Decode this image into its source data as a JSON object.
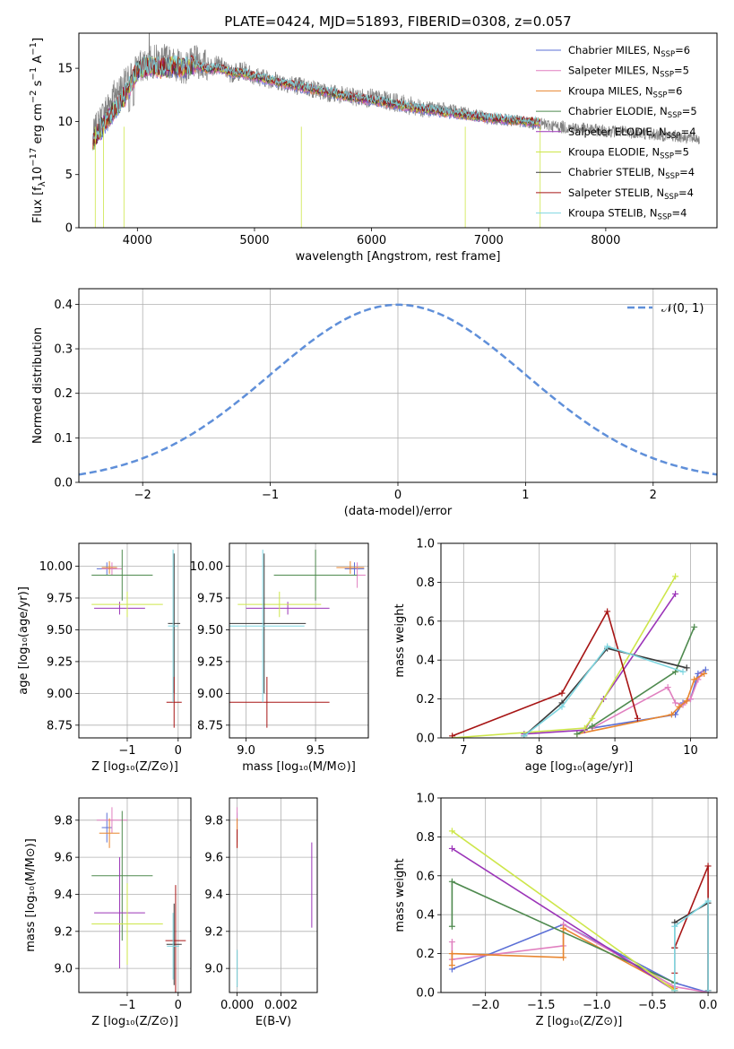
{
  "figure": {
    "title": "PLATE=0424, MJD=51893, FIBERID=0308, z=0.057"
  },
  "colors": {
    "Chabrier MILES": "#5b6fd6",
    "Salpeter MILES": "#e07fbf",
    "Kroupa MILES": "#e8852e",
    "Chabrier ELODIE": "#4f8a4f",
    "Salpeter ELODIE": "#9b34b8",
    "Kroupa ELODIE": "#cde64a",
    "Chabrier STELIB": "#3a3a3a",
    "Salpeter STELIB": "#a71515",
    "Kroupa STELIB": "#7fd6e0",
    "data": "#808080",
    "normal": "#5f8fd9"
  },
  "chart_data": [
    {
      "id": "spectrum",
      "type": "line",
      "title": "PLATE=0424, MJD=51893, FIBERID=0308, z=0.057",
      "xlabel": "wavelength [Angstrom, rest frame]",
      "ylabel": "Flux [f_λ 10^-17 erg cm^-2 s^-1 A^-1]",
      "xlim": [
        3500,
        8950
      ],
      "ylim": [
        0,
        18.3
      ],
      "xticks": [
        4000,
        5000,
        6000,
        7000,
        8000
      ],
      "yticks": [
        0,
        5,
        10,
        15
      ],
      "grid": false,
      "legend_position": "top-right",
      "legend": [
        {
          "label": "Chabrier MILES, N_SSP=6",
          "model": "Chabrier MILES"
        },
        {
          "label": "Salpeter MILES, N_SSP=5",
          "model": "Salpeter MILES"
        },
        {
          "label": "Kroupa MILES, N_SSP=6",
          "model": "Kroupa MILES"
        },
        {
          "label": "Chabrier ELODIE, N_SSP=5",
          "model": "Chabrier ELODIE"
        },
        {
          "label": "Salpeter ELODIE, N_SSP=4",
          "model": "Salpeter ELODIE"
        },
        {
          "label": "Kroupa ELODIE, N_SSP=5",
          "model": "Kroupa ELODIE"
        },
        {
          "label": "Chabrier STELIB, N_SSP=4",
          "model": "Chabrier STELIB"
        },
        {
          "label": "Salpeter STELIB, N_SSP=4",
          "model": "Salpeter STELIB"
        },
        {
          "label": "Kroupa STELIB, N_SSP=4",
          "model": "Kroupa STELIB"
        }
      ],
      "series": [
        {
          "name": "data",
          "x": [
            3620,
            3700,
            3800,
            3900,
            4000,
            4100,
            4200,
            4300,
            4400,
            4500,
            4600,
            4700,
            4800,
            4900,
            5000,
            5200,
            5400,
            5600,
            5800,
            6000,
            6200,
            6400,
            6600,
            6800,
            7000,
            7200,
            7400,
            7600,
            7800,
            8000,
            8200,
            8400,
            8600,
            8800
          ],
          "y": [
            8.5,
            10.5,
            12.5,
            13.5,
            15.0,
            15.5,
            15.8,
            15.5,
            15.0,
            15.6,
            15.2,
            15.3,
            14.5,
            14.8,
            14.3,
            13.8,
            13.3,
            12.8,
            12.3,
            12.2,
            11.8,
            11.3,
            11.2,
            10.8,
            10.3,
            10.1,
            9.8,
            9.5,
            9.3,
            9.1,
            9.0,
            8.8,
            8.6,
            8.4
          ]
        },
        {
          "name": "model",
          "x": [
            3620,
            3700,
            3800,
            3900,
            4000,
            4100,
            4200,
            4300,
            4400,
            4500,
            4600,
            4700,
            4800,
            4900,
            5000,
            5200,
            5400,
            5600,
            5800,
            6000,
            6200,
            6400,
            6600,
            6800,
            7000,
            7200,
            7400
          ],
          "y": [
            8.0,
            9.5,
            11.0,
            12.5,
            14.8,
            15.2,
            15.0,
            15.2,
            15.0,
            15.3,
            14.9,
            15.0,
            14.6,
            14.5,
            14.2,
            13.7,
            13.2,
            12.8,
            12.3,
            12.0,
            11.6,
            11.2,
            10.9,
            10.6,
            10.3,
            10.1,
            9.9
          ]
        }
      ]
    },
    {
      "id": "residuals",
      "type": "line",
      "xlabel": "(data-model)/error",
      "ylabel": "Normed distribution",
      "xlim": [
        -2.5,
        2.5
      ],
      "ylim": [
        0,
        0.435
      ],
      "xticks": [
        -2,
        -1,
        0,
        1,
        2
      ],
      "yticks": [
        0.0,
        0.1,
        0.2,
        0.3,
        0.4
      ],
      "grid": true,
      "legend_position": "top-right",
      "legend": [
        {
          "label": "𝒩(0, 1)"
        }
      ],
      "bin_width": 0.1,
      "series": [
        {
          "name": "histogram",
          "x_start": -2.5,
          "values": [
            0.04,
            0.04,
            0.05,
            0.055,
            0.06,
            0.07,
            0.08,
            0.09,
            0.11,
            0.12,
            0.14,
            0.15,
            0.17,
            0.19,
            0.19,
            0.18,
            0.2,
            0.22,
            0.23,
            0.26,
            0.28,
            0.3,
            0.32,
            0.33,
            0.34,
            0.35,
            0.36,
            0.37,
            0.36,
            0.35,
            0.34,
            0.35,
            0.36,
            0.34,
            0.33,
            0.34,
            0.36,
            0.35,
            0.33,
            0.3,
            0.27,
            0.25,
            0.22,
            0.2,
            0.18,
            0.15,
            0.13,
            0.11,
            0.1,
            0.09,
            0.075,
            0.065,
            0.055,
            0.05,
            0.045,
            0.04
          ]
        }
      ]
    },
    {
      "id": "age-vs-Z",
      "type": "scatter",
      "xlabel": "Z [log10(Z/Z_⊙)]",
      "ylabel": "age [log10(age/yr)]",
      "xlim": [
        -1.95,
        0.25
      ],
      "ylim": [
        8.65,
        10.18
      ],
      "xticks": [
        -1,
        0
      ],
      "yticks": [
        8.75,
        9.0,
        9.25,
        9.5,
        9.75,
        10.0
      ],
      "grid": true,
      "points": [
        {
          "model": "Chabrier MILES",
          "x": -1.4,
          "y": 9.98,
          "xerr": 0.2,
          "yerr": 0.05
        },
        {
          "model": "Salpeter MILES",
          "x": -1.3,
          "y": 9.98,
          "xerr": 0.2,
          "yerr": 0.05
        },
        {
          "model": "Kroupa MILES",
          "x": -1.35,
          "y": 9.99,
          "xerr": 0.15,
          "yerr": 0.05
        },
        {
          "model": "Chabrier ELODIE",
          "x": -1.1,
          "y": 9.93,
          "xerr": 0.6,
          "yerr": 0.2
        },
        {
          "model": "Salpeter ELODIE",
          "x": -1.15,
          "y": 9.67,
          "xerr": 0.5,
          "yerr": 0.05
        },
        {
          "model": "Kroupa ELODIE",
          "x": -1.0,
          "y": 9.7,
          "xerr": 0.7,
          "yerr": 0.1
        },
        {
          "model": "Chabrier STELIB",
          "x": -0.08,
          "y": 9.55,
          "xerr": 0.12,
          "yerr": 0.55
        },
        {
          "model": "Salpeter STELIB",
          "x": -0.08,
          "y": 8.93,
          "xerr": 0.15,
          "yerr": 0.2
        },
        {
          "model": "Kroupa STELIB",
          "x": -0.1,
          "y": 9.53,
          "xerr": 0.1,
          "yerr": 0.6
        }
      ]
    },
    {
      "id": "age-vs-mass",
      "type": "scatter",
      "xlabel": "mass [log10(M/M_⊙)]",
      "ylabel": "",
      "xlim": [
        8.88,
        9.88
      ],
      "ylim": [
        8.65,
        10.18
      ],
      "xticks": [
        9.0,
        9.5
      ],
      "yticks": [
        8.75,
        9.0,
        9.25,
        9.5,
        9.75,
        10.0
      ],
      "grid": true,
      "points": [
        {
          "model": "Chabrier MILES",
          "x": 9.78,
          "y": 9.98,
          "xerr": 0.07,
          "yerr": 0.05
        },
        {
          "model": "Salpeter MILES",
          "x": 9.8,
          "y": 9.93,
          "xerr": 0.06,
          "yerr": 0.1
        },
        {
          "model": "Kroupa MILES",
          "x": 9.75,
          "y": 9.99,
          "xerr": 0.1,
          "yerr": 0.05
        },
        {
          "model": "Chabrier ELODIE",
          "x": 9.5,
          "y": 9.93,
          "xerr": 0.3,
          "yerr": 0.2
        },
        {
          "model": "Salpeter ELODIE",
          "x": 9.3,
          "y": 9.67,
          "xerr": 0.3,
          "yerr": 0.05
        },
        {
          "model": "Kroupa ELODIE",
          "x": 9.24,
          "y": 9.7,
          "xerr": 0.3,
          "yerr": 0.1
        },
        {
          "model": "Chabrier STELIB",
          "x": 9.13,
          "y": 9.55,
          "xerr": 0.3,
          "yerr": 0.55
        },
        {
          "model": "Salpeter STELIB",
          "x": 9.15,
          "y": 8.93,
          "xerr": 0.45,
          "yerr": 0.2
        },
        {
          "model": "Kroupa STELIB",
          "x": 9.12,
          "y": 9.53,
          "xerr": 0.3,
          "yerr": 0.6
        }
      ]
    },
    {
      "id": "mass-weight-vs-age",
      "type": "line",
      "xlabel": "age [log10(age/yr)]",
      "ylabel": "mass weight",
      "xlim": [
        6.7,
        10.35
      ],
      "ylim": [
        0,
        1.0
      ],
      "xticks": [
        7,
        8,
        9,
        10
      ],
      "yticks": [
        0.0,
        0.2,
        0.4,
        0.6,
        0.8,
        1.0
      ],
      "grid": true,
      "series": [
        {
          "name": "Chabrier MILES",
          "x": [
            8.7,
            9.8,
            9.9,
            10.0,
            10.1,
            10.2
          ],
          "y": [
            0.05,
            0.12,
            0.18,
            0.2,
            0.33,
            0.35
          ]
        },
        {
          "name": "Salpeter MILES",
          "x": [
            8.7,
            9.7,
            9.8,
            9.9,
            10.0,
            10.1,
            10.15
          ],
          "y": [
            0.05,
            0.26,
            0.18,
            0.17,
            0.2,
            0.3,
            0.33
          ]
        },
        {
          "name": "Kroupa MILES",
          "x": [
            8.5,
            9.75,
            9.85,
            9.95,
            10.05,
            10.18
          ],
          "y": [
            0.02,
            0.12,
            0.16,
            0.19,
            0.3,
            0.33
          ]
        },
        {
          "name": "Chabrier ELODIE",
          "x": [
            8.5,
            8.7,
            9.8,
            10.05
          ],
          "y": [
            0.02,
            0.06,
            0.34,
            0.57
          ]
        },
        {
          "name": "Salpeter ELODIE",
          "x": [
            7.8,
            8.6,
            8.85,
            9.8
          ],
          "y": [
            0.02,
            0.04,
            0.2,
            0.74
          ]
        },
        {
          "name": "Kroupa ELODIE",
          "x": [
            6.85,
            8.6,
            8.7,
            9.8
          ],
          "y": [
            0.0,
            0.05,
            0.1,
            0.83
          ]
        },
        {
          "name": "Chabrier STELIB",
          "x": [
            7.8,
            8.3,
            8.9,
            9.95
          ],
          "y": [
            0.01,
            0.18,
            0.46,
            0.36
          ]
        },
        {
          "name": "Salpeter STELIB",
          "x": [
            6.85,
            8.3,
            8.9,
            9.3
          ],
          "y": [
            0.01,
            0.23,
            0.65,
            0.1
          ]
        },
        {
          "name": "Kroupa STELIB",
          "x": [
            7.8,
            8.3,
            8.9,
            9.9
          ],
          "y": [
            0.01,
            0.16,
            0.47,
            0.34
          ]
        }
      ]
    },
    {
      "id": "mass-vs-Z",
      "type": "scatter",
      "xlabel": "Z [log10(Z/Z_⊙)]",
      "ylabel": "mass [log10(M/M_⊙)]",
      "xlim": [
        -1.95,
        0.25
      ],
      "ylim": [
        8.87,
        9.92
      ],
      "xticks": [
        -1,
        0
      ],
      "yticks": [
        9.0,
        9.2,
        9.4,
        9.6,
        9.8
      ],
      "grid": true,
      "points": [
        {
          "model": "Chabrier MILES",
          "x": -1.4,
          "y": 9.76,
          "xerr": 0.1,
          "yerr": 0.08
        },
        {
          "model": "Salpeter MILES",
          "x": -1.3,
          "y": 9.8,
          "xerr": 0.3,
          "yerr": 0.07
        },
        {
          "model": "Kroupa MILES",
          "x": -1.35,
          "y": 9.73,
          "xerr": 0.2,
          "yerr": 0.08
        },
        {
          "model": "Chabrier ELODIE",
          "x": -1.1,
          "y": 9.5,
          "xerr": 0.6,
          "yerr": 0.35
        },
        {
          "model": "Salpeter ELODIE",
          "x": -1.15,
          "y": 9.3,
          "xerr": 0.5,
          "yerr": 0.3
        },
        {
          "model": "Kroupa ELODIE",
          "x": -1.0,
          "y": 9.24,
          "xerr": 0.7,
          "yerr": 0.22
        },
        {
          "model": "Chabrier STELIB",
          "x": -0.08,
          "y": 9.13,
          "xerr": 0.15,
          "yerr": 0.22
        },
        {
          "model": "Salpeter STELIB",
          "x": -0.05,
          "y": 9.15,
          "xerr": 0.2,
          "yerr": 0.3
        },
        {
          "model": "Kroupa STELIB",
          "x": -0.1,
          "y": 9.12,
          "xerr": 0.12,
          "yerr": 0.18
        }
      ]
    },
    {
      "id": "mass-vs-EBV",
      "type": "scatter",
      "xlabel": "E(B-V)",
      "ylabel": "",
      "xlim": [
        -0.00035,
        0.00365
      ],
      "ylim": [
        8.87,
        9.92
      ],
      "xticks": [
        0.0,
        0.002
      ],
      "yticks": [
        9.0,
        9.2,
        9.4,
        9.6,
        9.8
      ],
      "grid": true,
      "points": [
        {
          "model": "Chabrier MILES",
          "x": 0.0,
          "y": 9.76,
          "xerr": 0,
          "yerr": 0.08
        },
        {
          "model": "Salpeter MILES",
          "x": 0.0,
          "y": 9.8,
          "xerr": 0,
          "yerr": 0.07
        },
        {
          "model": "Kroupa MILES",
          "x": 0.0,
          "y": 9.73,
          "xerr": 0,
          "yerr": 0.08
        },
        {
          "model": "Salpeter ELODIE",
          "x": 0.0034,
          "y": 9.45,
          "xerr": 0,
          "yerr": 0.23
        },
        {
          "model": "Chabrier STELIB",
          "x": 0.0,
          "y": 9.0,
          "xerr": 0,
          "yerr": 0.1
        },
        {
          "model": "Salpeter STELIB",
          "x": 0.0,
          "y": 9.7,
          "xerr": 0,
          "yerr": 0.05
        },
        {
          "model": "Kroupa STELIB",
          "x": 0.0,
          "y": 9.0,
          "xerr": 0,
          "yerr": 0.1
        }
      ]
    },
    {
      "id": "mass-weight-vs-Z",
      "type": "line",
      "xlabel": "Z [log10(Z/Z_⊙)]",
      "ylabel": "mass weight",
      "xlim": [
        -2.4,
        0.08
      ],
      "ylim": [
        0,
        1.0
      ],
      "xticks": [
        -2.0,
        -1.5,
        -1.0,
        -0.5,
        0.0
      ],
      "yticks": [
        0.0,
        0.2,
        0.4,
        0.6,
        0.8,
        1.0
      ],
      "grid": true,
      "series": [
        {
          "name": "Chabrier MILES",
          "x": [
            -2.3,
            -1.3,
            -0.3,
            0.0
          ],
          "y": [
            0.12,
            0.35,
            0.05,
            0.0
          ]
        },
        {
          "name": "Salpeter MILES",
          "x": [
            -2.3,
            -2.3,
            -1.3,
            -1.3,
            -0.3,
            0.0
          ],
          "y": [
            0.26,
            0.17,
            0.24,
            0.35,
            0.03,
            0.0
          ]
        },
        {
          "name": "Kroupa MILES",
          "x": [
            -2.3,
            -2.3,
            -1.3,
            -1.3,
            -0.3
          ],
          "y": [
            0.14,
            0.2,
            0.18,
            0.33,
            0.02
          ]
        },
        {
          "name": "Chabrier ELODIE",
          "x": [
            -2.3,
            -2.3,
            -0.3,
            -0.3
          ],
          "y": [
            0.34,
            0.57,
            0.05,
            0.01
          ]
        },
        {
          "name": "Salpeter ELODIE",
          "x": [
            -2.3,
            -0.3
          ],
          "y": [
            0.74,
            0.01
          ]
        },
        {
          "name": "Kroupa ELODIE",
          "x": [
            -2.3,
            -0.3
          ],
          "y": [
            0.83,
            0.01
          ]
        },
        {
          "name": "Chabrier STELIB",
          "x": [
            -0.3,
            -0.3,
            0.0,
            0.0
          ],
          "y": [
            0.23,
            0.36,
            0.46,
            0.01
          ]
        },
        {
          "name": "Salpeter STELIB",
          "x": [
            -0.3,
            -0.3,
            0.0,
            0.0
          ],
          "y": [
            0.1,
            0.23,
            0.65,
            0.01
          ]
        },
        {
          "name": "Kroupa STELIB",
          "x": [
            -0.3,
            -0.3,
            0.0,
            0.0
          ],
          "y": [
            0.01,
            0.34,
            0.47,
            0.01
          ]
        }
      ]
    }
  ]
}
